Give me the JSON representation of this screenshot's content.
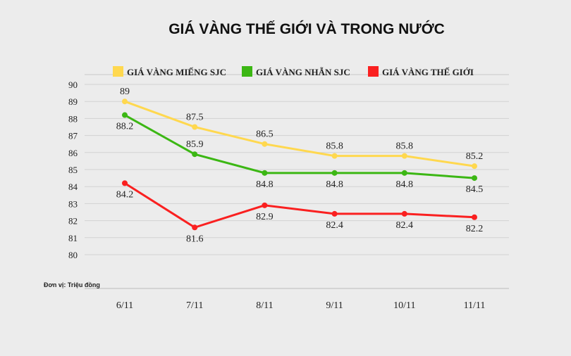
{
  "chart_data": {
    "type": "line",
    "title": "GIÁ VÀNG THẾ GIỚI VÀ TRONG NƯỚC",
    "note": "Đơn vị: Triệu đồng",
    "categories": [
      "6/11",
      "7/11",
      "8/11",
      "9/11",
      "10/11",
      "11/11"
    ],
    "ylim": [
      80,
      90
    ],
    "yticks": [
      "80",
      "81",
      "82",
      "83",
      "84",
      "85",
      "86",
      "87",
      "88",
      "89",
      "90"
    ],
    "grid": true,
    "legend": "top",
    "series": [
      {
        "name": "GIÁ VÀNG MIẾNG SJC",
        "color": "#ffd84f",
        "values": [
          89,
          87.5,
          86.5,
          85.8,
          85.8,
          85.2
        ],
        "labels": [
          "89",
          "87.5",
          "86.5",
          "85.8",
          "85.8",
          "85.2"
        ]
      },
      {
        "name": "GIÁ VÀNG NHẪN SJC",
        "color": "#3cb714",
        "values": [
          88.2,
          85.9,
          84.8,
          84.8,
          84.8,
          84.5
        ],
        "labels": [
          "88.2",
          "85.9",
          "84.8",
          "84.8",
          "84.8",
          "84.5"
        ]
      },
      {
        "name": "GIÁ VÀNG THẾ GIỚI",
        "color": "#fa2020",
        "values": [
          84.2,
          81.6,
          82.9,
          82.4,
          82.4,
          82.2
        ],
        "labels": [
          "84.2",
          "81.6",
          "82.9",
          "82.4",
          "82.4",
          "82.2"
        ]
      }
    ]
  }
}
